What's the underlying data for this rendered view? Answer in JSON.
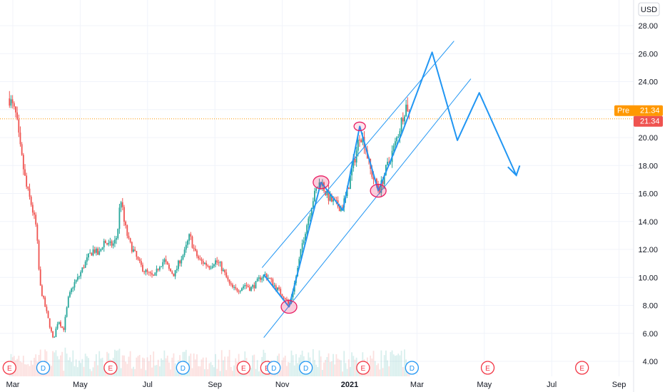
{
  "chart_data": {
    "type": "candlestick",
    "currency": "USD",
    "y_ticks": [
      "28.00",
      "26.00",
      "24.00",
      "22.00",
      "20.00",
      "18.00",
      "16.00",
      "14.00",
      "12.00",
      "10.00",
      "8.00",
      "6.00",
      "4.00"
    ],
    "y_range": [
      3.5,
      29.5
    ],
    "x_ticks": [
      {
        "label": "Mar",
        "month": 0,
        "bold": false
      },
      {
        "label": "May",
        "month": 2,
        "bold": false
      },
      {
        "label": "Jul",
        "month": 4,
        "bold": false
      },
      {
        "label": "Sep",
        "month": 6,
        "bold": false
      },
      {
        "label": "Nov",
        "month": 8,
        "bold": false
      },
      {
        "label": "2021",
        "month": 10,
        "bold": true
      },
      {
        "label": "Mar",
        "month": 12,
        "bold": false
      },
      {
        "label": "May",
        "month": 14,
        "bold": false
      },
      {
        "label": "Jul",
        "month": 16,
        "bold": false
      },
      {
        "label": "Sep",
        "month": 18,
        "bold": false
      }
    ],
    "price_path": [
      [
        -0.1,
        22.8
      ],
      [
        0.1,
        21.5
      ],
      [
        0.2,
        19.5
      ],
      [
        0.4,
        16.5
      ],
      [
        0.55,
        15.2
      ],
      [
        0.7,
        13.5
      ],
      [
        0.8,
        9.5
      ],
      [
        0.95,
        8.0
      ],
      [
        1.1,
        6.5
      ],
      [
        1.2,
        5.5
      ],
      [
        1.35,
        7.0
      ],
      [
        1.5,
        6.2
      ],
      [
        1.65,
        8.5
      ],
      [
        1.8,
        9.5
      ],
      [
        1.95,
        10.0
      ],
      [
        2.1,
        10.8
      ],
      [
        2.25,
        11.5
      ],
      [
        2.4,
        12.0
      ],
      [
        2.55,
        11.6
      ],
      [
        2.7,
        12.6
      ],
      [
        2.85,
        12.3
      ],
      [
        3.0,
        12.4
      ],
      [
        3.1,
        13.0
      ],
      [
        3.2,
        15.8
      ],
      [
        3.3,
        14.0
      ],
      [
        3.45,
        12.5
      ],
      [
        3.6,
        11.8
      ],
      [
        3.75,
        11.0
      ],
      [
        3.9,
        10.5
      ],
      [
        4.05,
        10.2
      ],
      [
        4.2,
        10.0
      ],
      [
        4.35,
        10.9
      ],
      [
        4.5,
        11.2
      ],
      [
        4.65,
        10.5
      ],
      [
        4.8,
        10.2
      ],
      [
        4.95,
        11.2
      ],
      [
        5.1,
        11.8
      ],
      [
        5.25,
        13.0
      ],
      [
        5.4,
        11.8
      ],
      [
        5.55,
        11.2
      ],
      [
        5.7,
        11.0
      ],
      [
        5.85,
        10.8
      ],
      [
        6.0,
        11.2
      ],
      [
        6.15,
        10.9
      ],
      [
        6.3,
        10.2
      ],
      [
        6.45,
        9.4
      ],
      [
        6.6,
        9.1
      ],
      [
        6.75,
        9.2
      ],
      [
        6.9,
        9.5
      ],
      [
        7.05,
        9.2
      ],
      [
        7.2,
        9.5
      ],
      [
        7.35,
        10.0
      ],
      [
        7.5,
        10.2
      ],
      [
        7.65,
        9.8
      ],
      [
        7.8,
        9.3
      ],
      [
        7.95,
        8.9
      ],
      [
        8.1,
        8.5
      ],
      [
        8.2,
        8.0
      ],
      [
        8.3,
        8.9
      ],
      [
        8.45,
        10.5
      ],
      [
        8.6,
        12.5
      ],
      [
        8.75,
        14.0
      ],
      [
        8.9,
        15.5
      ],
      [
        9.05,
        16.5
      ],
      [
        9.15,
        16.9
      ],
      [
        9.3,
        16.0
      ],
      [
        9.45,
        15.5
      ],
      [
        9.6,
        15.2
      ],
      [
        9.75,
        15.0
      ],
      [
        9.9,
        15.8
      ],
      [
        10.05,
        17.5
      ],
      [
        10.2,
        19.0
      ],
      [
        10.3,
        20.3
      ],
      [
        10.45,
        19.6
      ],
      [
        10.6,
        17.8
      ],
      [
        10.75,
        16.8
      ],
      [
        10.9,
        16.3
      ],
      [
        11.05,
        17.5
      ],
      [
        11.2,
        18.5
      ],
      [
        11.35,
        19.5
      ],
      [
        11.5,
        20.8
      ],
      [
        11.6,
        21.8
      ],
      [
        11.7,
        22.4
      ],
      [
        11.8,
        21.34
      ]
    ],
    "last_price": "21.34",
    "pre_label": "Pre",
    "pre_price": "21.34",
    "channel_upper": [
      [
        7.4,
        10.7
      ],
      [
        13.1,
        26.9
      ]
    ],
    "channel_lower": [
      [
        7.45,
        5.7
      ],
      [
        13.6,
        24.2
      ]
    ],
    "projection_path": [
      [
        7.45,
        10.2
      ],
      [
        8.2,
        7.9
      ],
      [
        9.15,
        16.8
      ],
      [
        9.8,
        14.8
      ],
      [
        10.3,
        20.8
      ],
      [
        10.85,
        16.2
      ],
      [
        11.55,
        20.3
      ],
      [
        12.45,
        26.1
      ],
      [
        13.2,
        19.8
      ],
      [
        13.85,
        23.2
      ],
      [
        14.95,
        17.3
      ]
    ],
    "projection_arrowhead": [
      [
        14.7,
        17.9
      ],
      [
        14.95,
        17.3
      ],
      [
        15.05,
        18.0
      ]
    ],
    "highlight_circles": [
      {
        "month": 8.2,
        "price": 7.9,
        "highlight": true
      },
      {
        "month": 9.15,
        "price": 16.8,
        "highlight": true
      },
      {
        "month": 10.3,
        "price": 20.8,
        "highlight": false
      },
      {
        "month": 10.85,
        "price": 16.2,
        "highlight": true
      }
    ],
    "event_markers": [
      {
        "type": "E",
        "month": -0.1
      },
      {
        "type": "D",
        "month": 0.9
      },
      {
        "type": "E",
        "month": 2.9
      },
      {
        "type": "D",
        "month": 5.05
      },
      {
        "type": "E",
        "month": 6.85
      },
      {
        "type": "E",
        "month": 7.55
      },
      {
        "type": "D",
        "month": 7.75
      },
      {
        "type": "D",
        "month": 8.7
      },
      {
        "type": "E",
        "month": 10.4
      },
      {
        "type": "D",
        "month": 11.85
      },
      {
        "type": "E",
        "month": 14.1
      },
      {
        "type": "E",
        "month": 16.9
      }
    ],
    "colors": {
      "up": "#26a69a",
      "down": "#ef5350",
      "drawing": "#2196f3",
      "highlight_fill": "#e91e63",
      "pre_badge": "#ff9800",
      "price_badge": "#ef5350",
      "price_line": "#ff9800",
      "earnings": "#f23645",
      "dividend": "#2196f3",
      "grid": "#f0f3fa"
    }
  }
}
